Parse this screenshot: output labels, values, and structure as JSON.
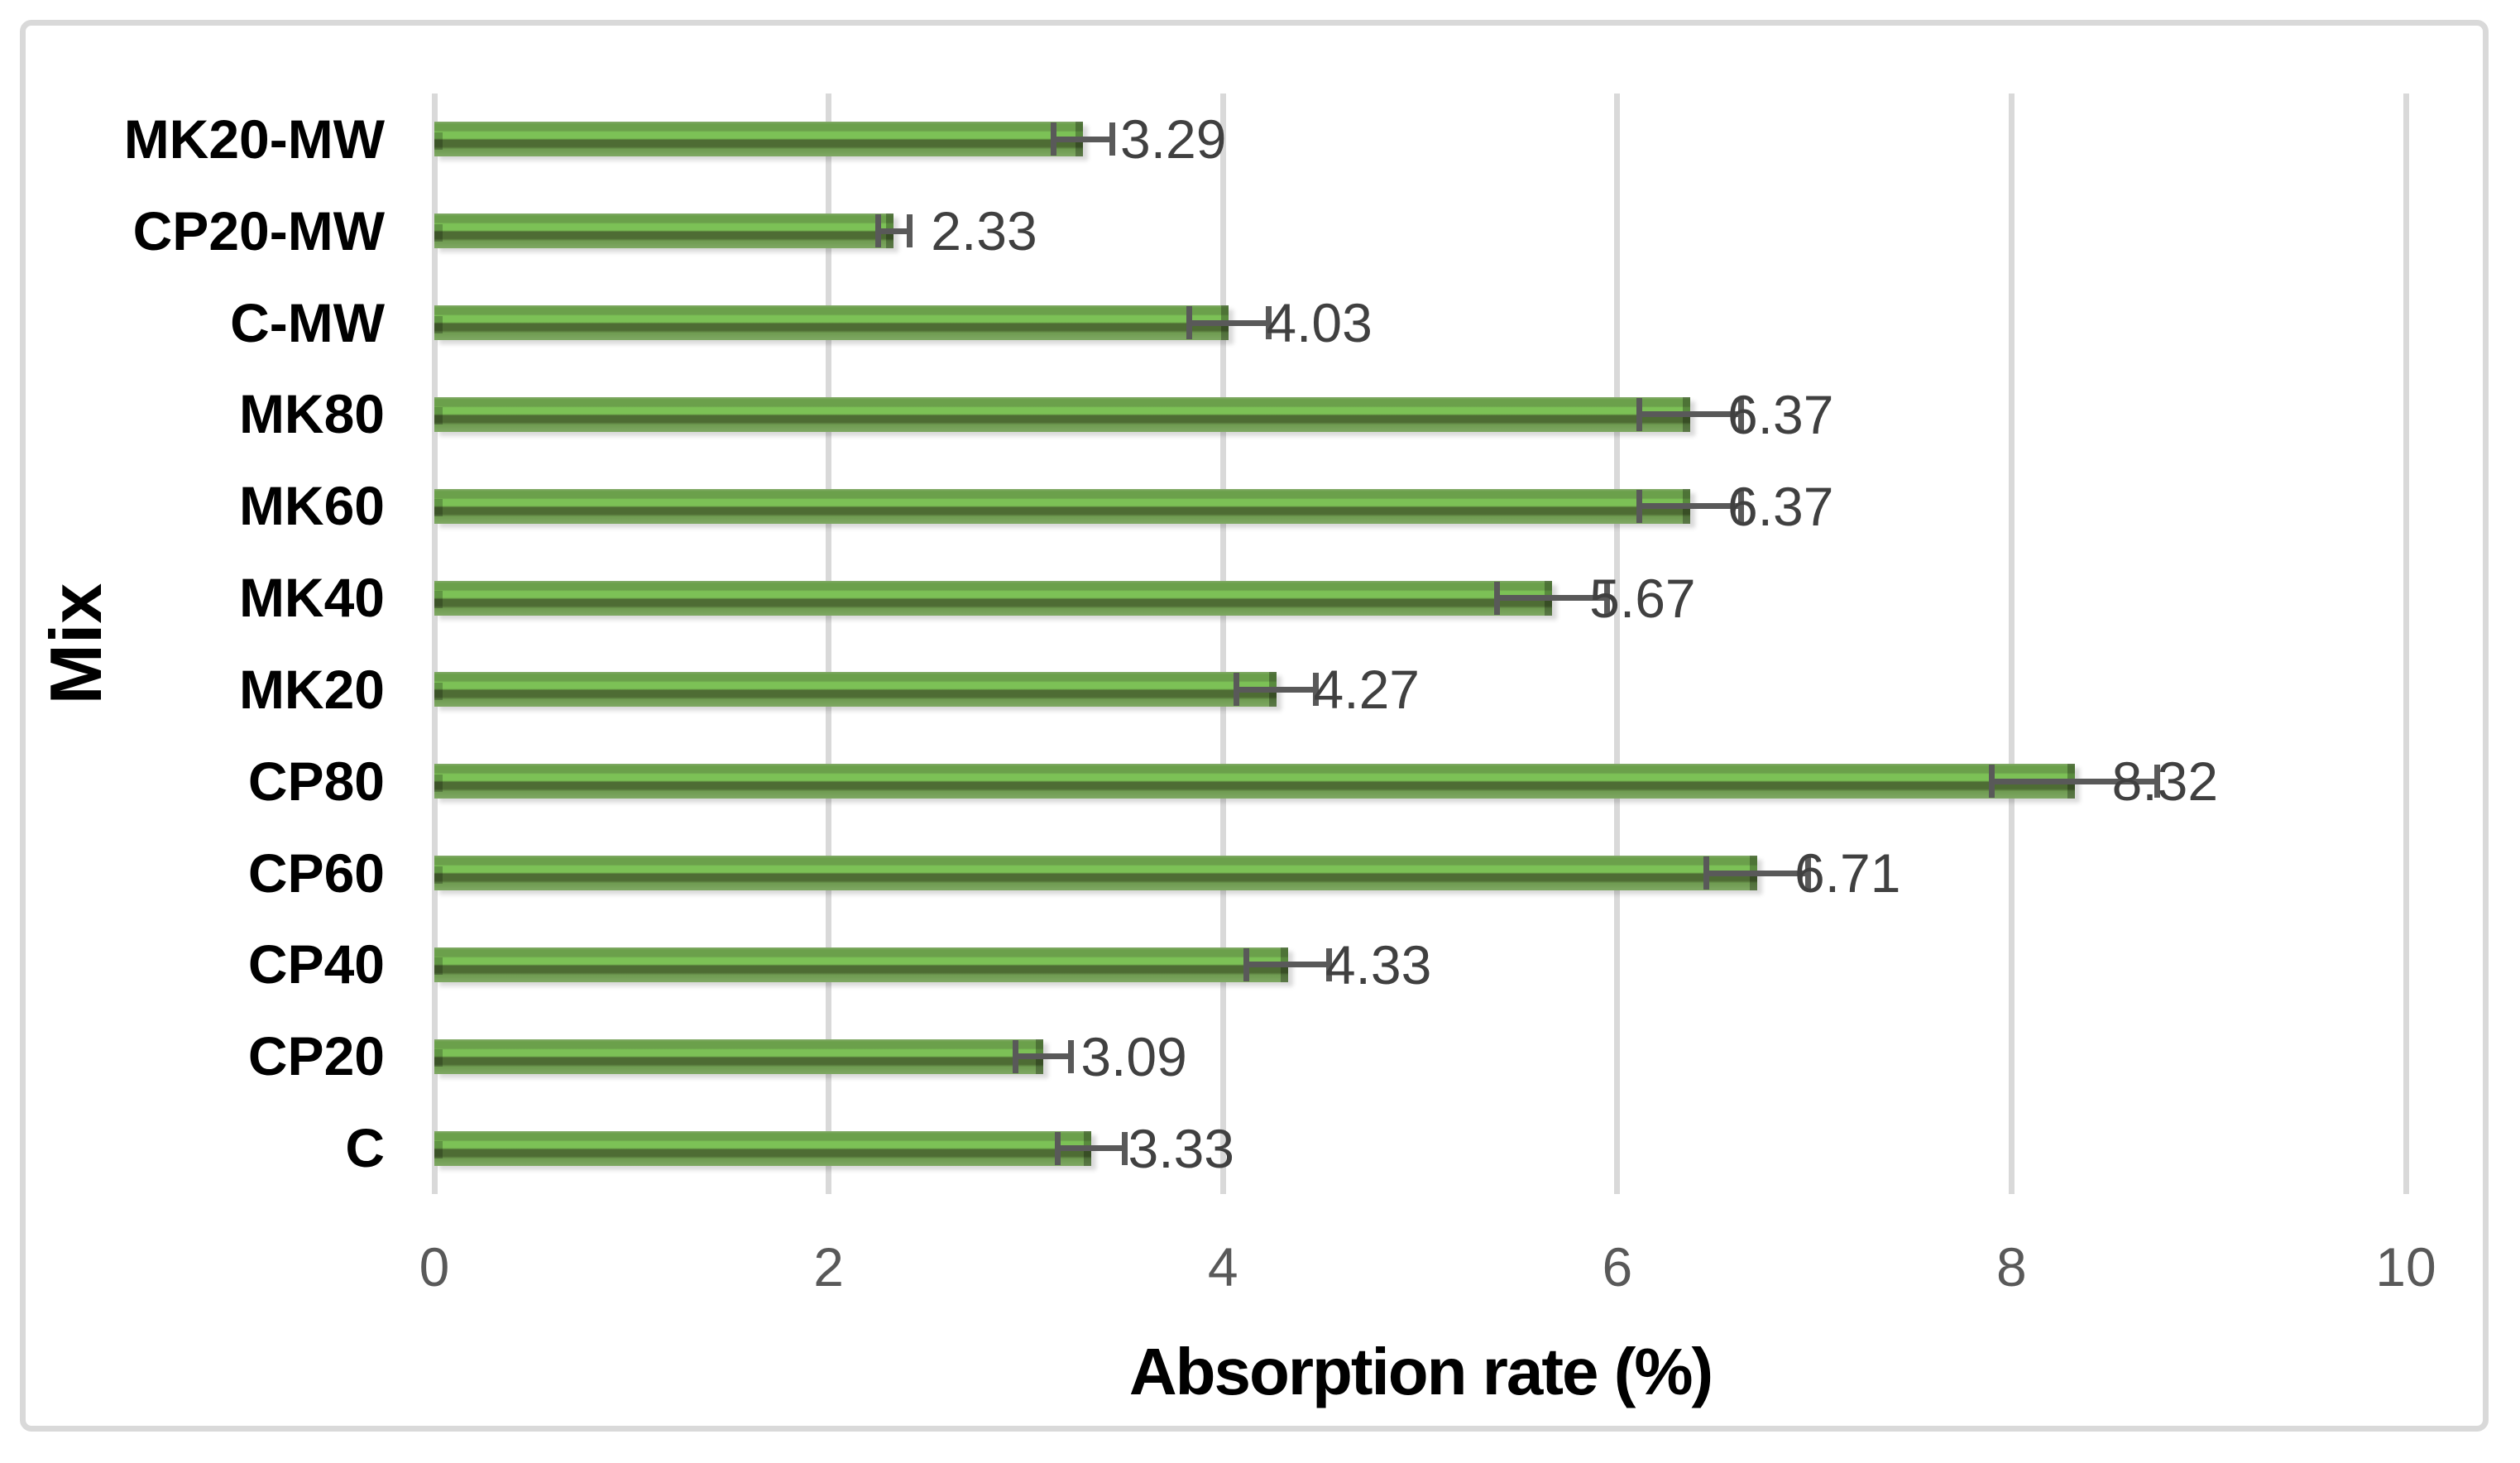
{
  "figure": {
    "background_color": "#ffffff",
    "frame_color": "#d9d9d9"
  },
  "chart_data": {
    "type": "bar",
    "orientation": "horizontal",
    "title": "",
    "xlabel": "Absorption rate (%)",
    "ylabel": "Mix",
    "xlim": [
      0,
      10
    ],
    "x_ticks": [
      0,
      2,
      4,
      6,
      8,
      10
    ],
    "grid": true,
    "legend": "none",
    "categories": [
      "MK20-MW",
      "CP20-MW",
      "C-MW",
      "MK80",
      "MK60",
      "MK40",
      "MK20",
      "CP80",
      "CP60",
      "CP40",
      "CP20",
      "C"
    ],
    "values": [
      3.29,
      2.33,
      4.03,
      6.37,
      6.37,
      5.67,
      4.27,
      8.32,
      6.71,
      4.33,
      3.09,
      3.33
    ],
    "value_labels": [
      "3.29",
      "2.33",
      "4.03",
      "6.37",
      "6.37",
      "5.67",
      "4.27",
      "8.32",
      "6.71",
      "4.33",
      "3.09",
      "3.33"
    ],
    "error_bars": [
      0.15,
      0.08,
      0.2,
      0.26,
      0.26,
      0.28,
      0.2,
      0.42,
      0.26,
      0.21,
      0.14,
      0.17
    ],
    "colors": {
      "bar_band_top": "#6ba04b",
      "bar_band_light": "#7cc156",
      "bar_band_dark": "#4e6c34",
      "bar_band_bottom": "#6f9b51",
      "error_bar": "#595959",
      "value_label": "#404040",
      "tick_label": "#595959",
      "gridline": "#d9d9d9",
      "axis_title": "#000000"
    }
  }
}
